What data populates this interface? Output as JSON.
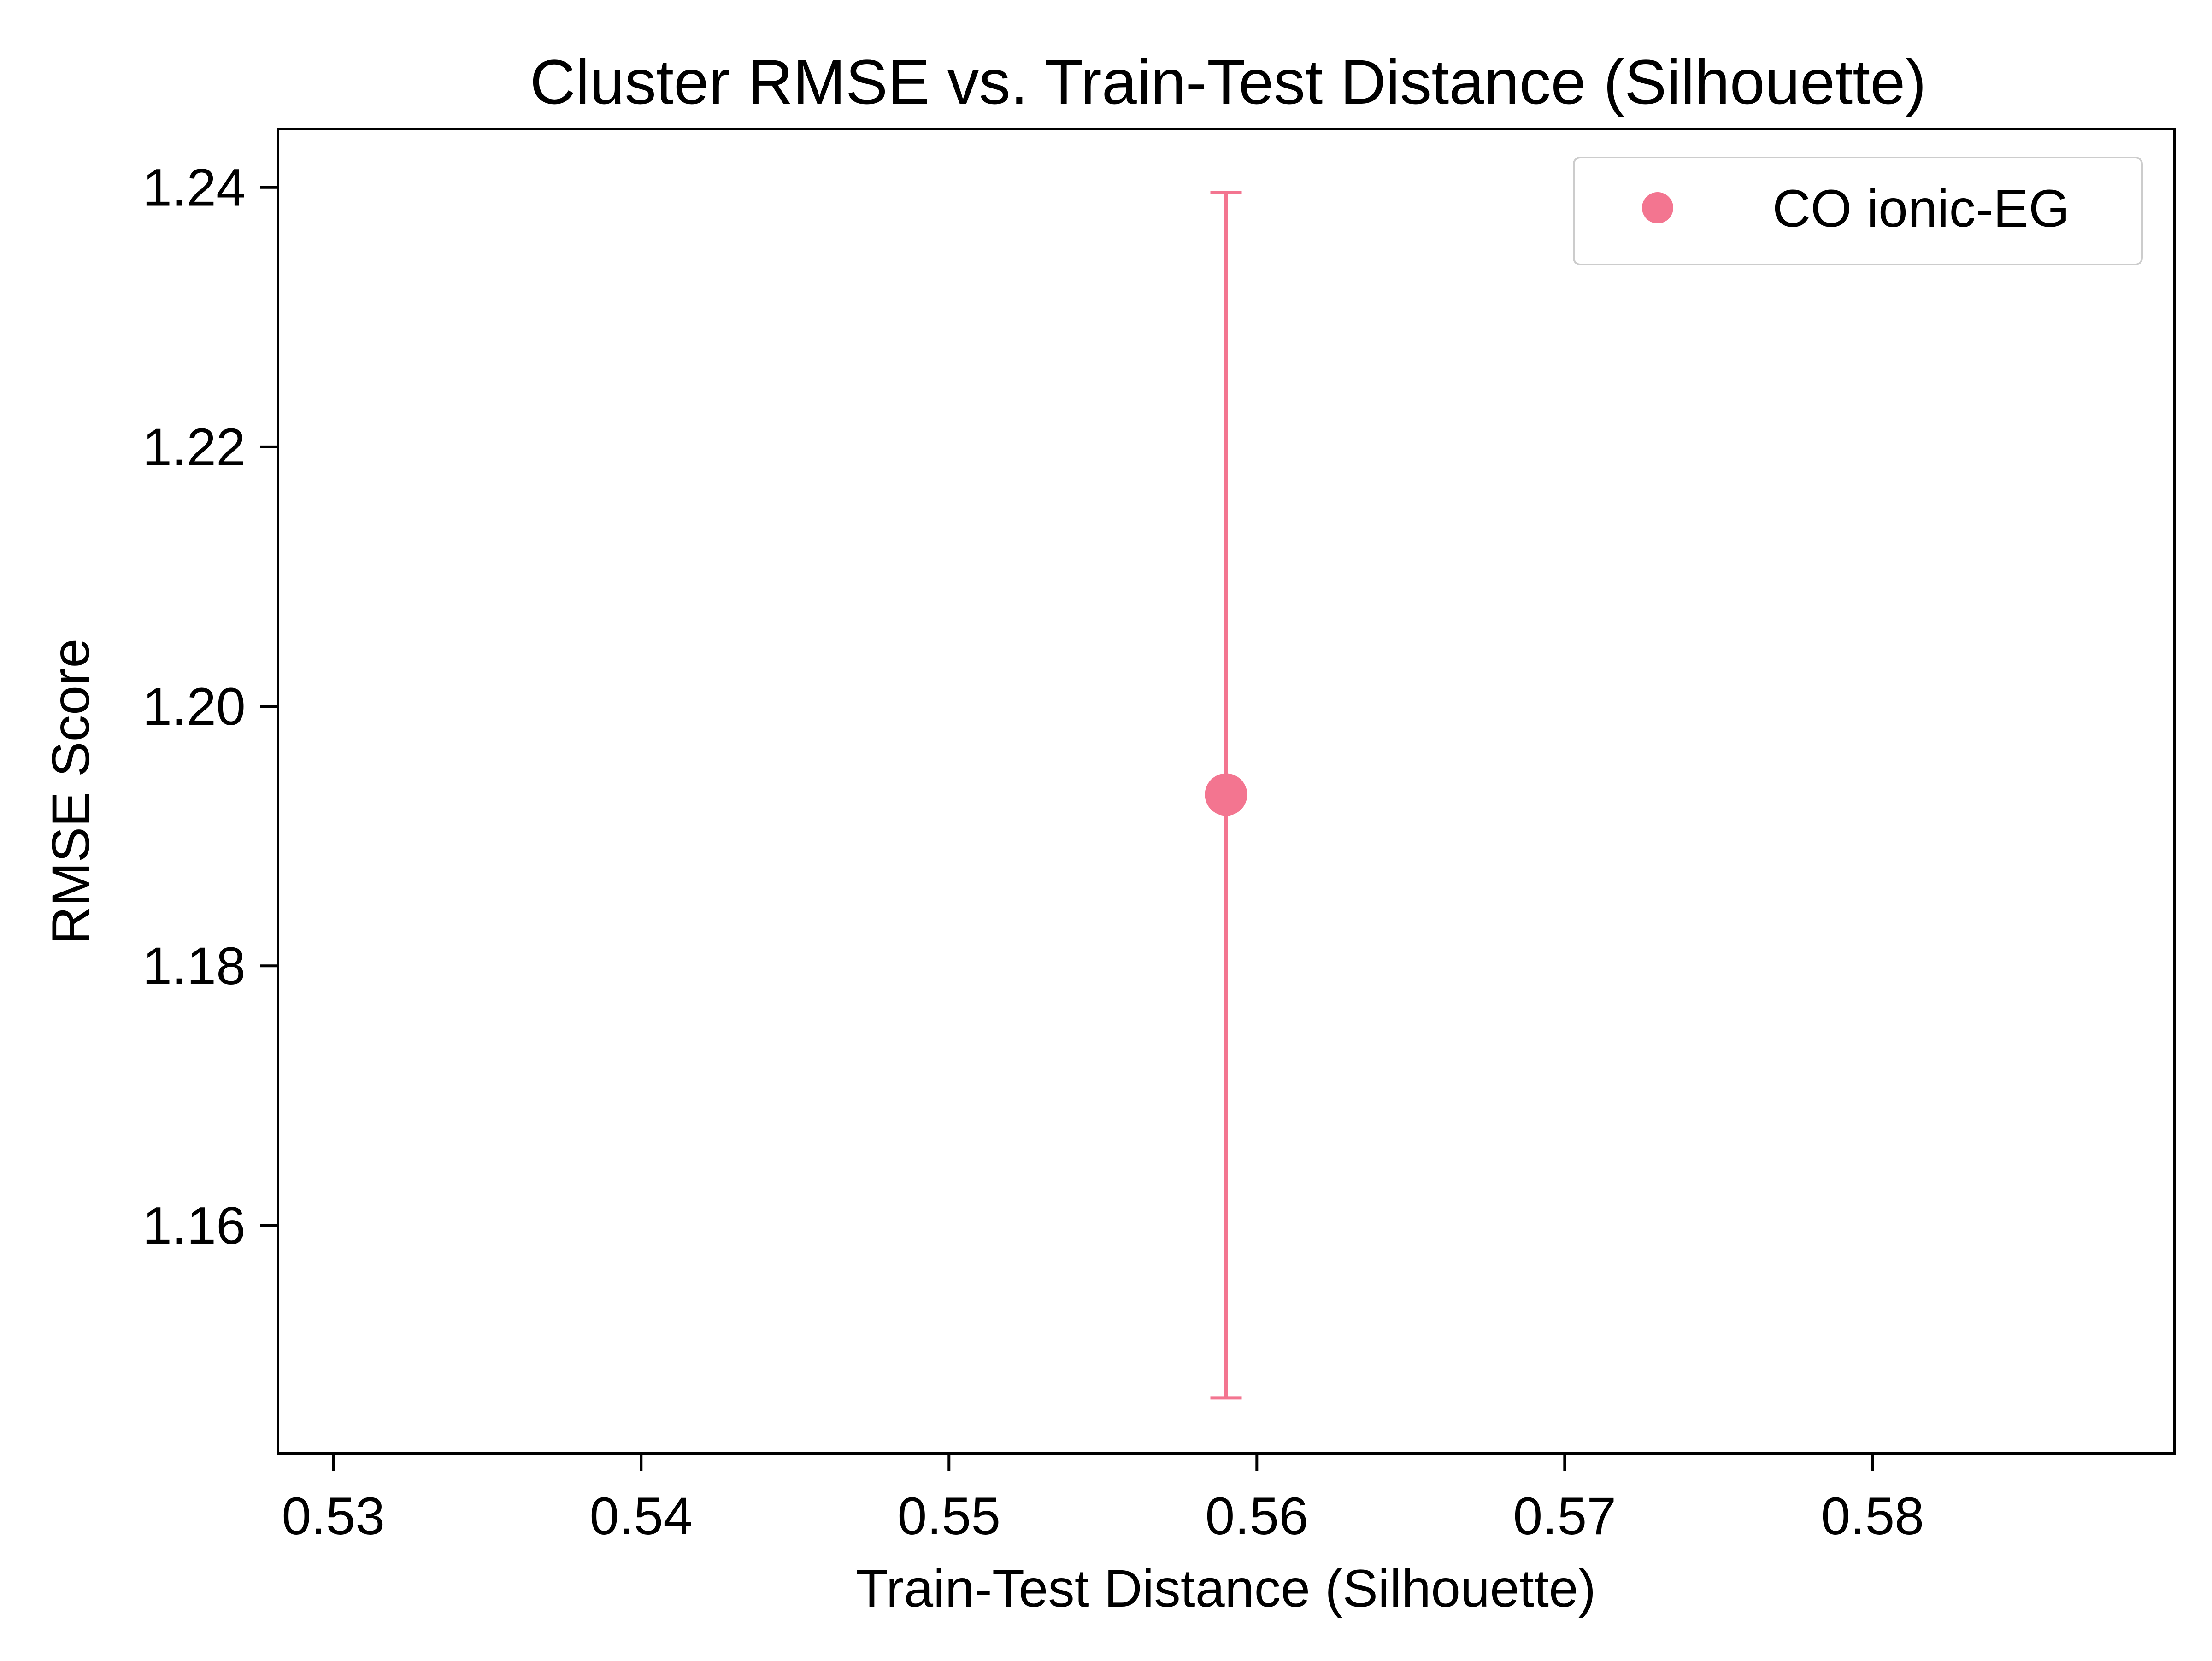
{
  "chart_data": {
    "type": "scatter",
    "title": "Cluster RMSE vs. Train-Test Distance (Silhouette)",
    "xlabel": "Train-Test Distance (Silhouette)",
    "ylabel": "RMSE Score",
    "xlim": [
      0.5282,
      0.5898
    ],
    "ylim": [
      1.1424,
      1.2445
    ],
    "x_ticks": [
      "0.53",
      "0.54",
      "0.55",
      "0.56",
      "0.57",
      "0.58"
    ],
    "x_tick_values": [
      0.53,
      0.54,
      0.55,
      0.56,
      0.57,
      0.58
    ],
    "y_ticks": [
      "1.16",
      "1.18",
      "1.20",
      "1.22",
      "1.24"
    ],
    "y_tick_values": [
      1.16,
      1.18,
      1.2,
      1.22,
      1.24
    ],
    "grid": false,
    "legend_position": "top-right",
    "series": [
      {
        "name": "CO ionic-EG",
        "color": "#f37590",
        "points": [
          {
            "x": 0.559,
            "y": 1.1932,
            "error_low": 1.1467,
            "error_high": 1.2396
          }
        ]
      }
    ]
  }
}
